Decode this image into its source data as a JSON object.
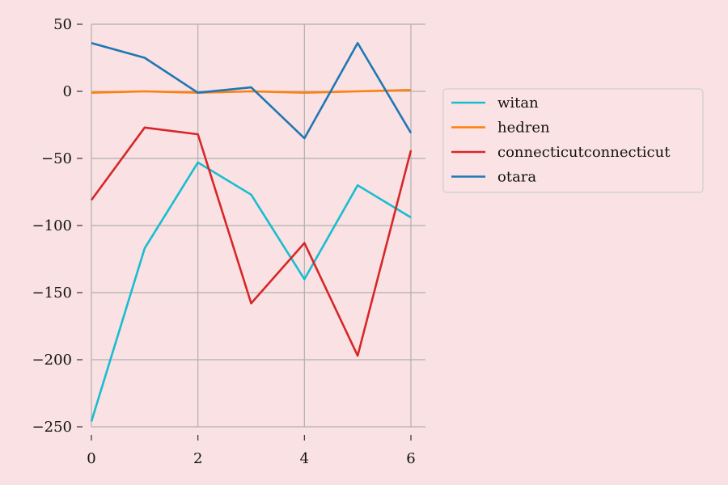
{
  "chart_data": {
    "type": "line",
    "title": "",
    "xlabel": "",
    "ylabel": "",
    "x": [
      0,
      1,
      2,
      3,
      4,
      5,
      6
    ],
    "xlim": [
      0,
      6
    ],
    "ylim": [
      -250,
      50
    ],
    "xticks": [
      0,
      2,
      4,
      6
    ],
    "yticks": [
      50,
      0,
      -50,
      -100,
      -150,
      -200,
      -250
    ],
    "grid": true,
    "legend_position": "right",
    "background_color": "#fae1e3",
    "series": [
      {
        "name": "witan",
        "color": "#17becf",
        "values": [
          -246,
          -117,
          -53,
          -77,
          -140,
          -70,
          -94
        ]
      },
      {
        "name": "hedren",
        "color": "#ff7f0e",
        "values": [
          -1,
          0,
          -1,
          0,
          -1,
          0,
          1
        ]
      },
      {
        "name": "connecticutconnecticut",
        "color": "#d62728",
        "values": [
          -81,
          -27,
          -32,
          -158,
          -113,
          -197,
          -44
        ]
      },
      {
        "name": "otara",
        "color": "#1f77b4",
        "values": [
          36,
          25,
          -1,
          3,
          -35,
          36,
          -31
        ]
      }
    ]
  }
}
